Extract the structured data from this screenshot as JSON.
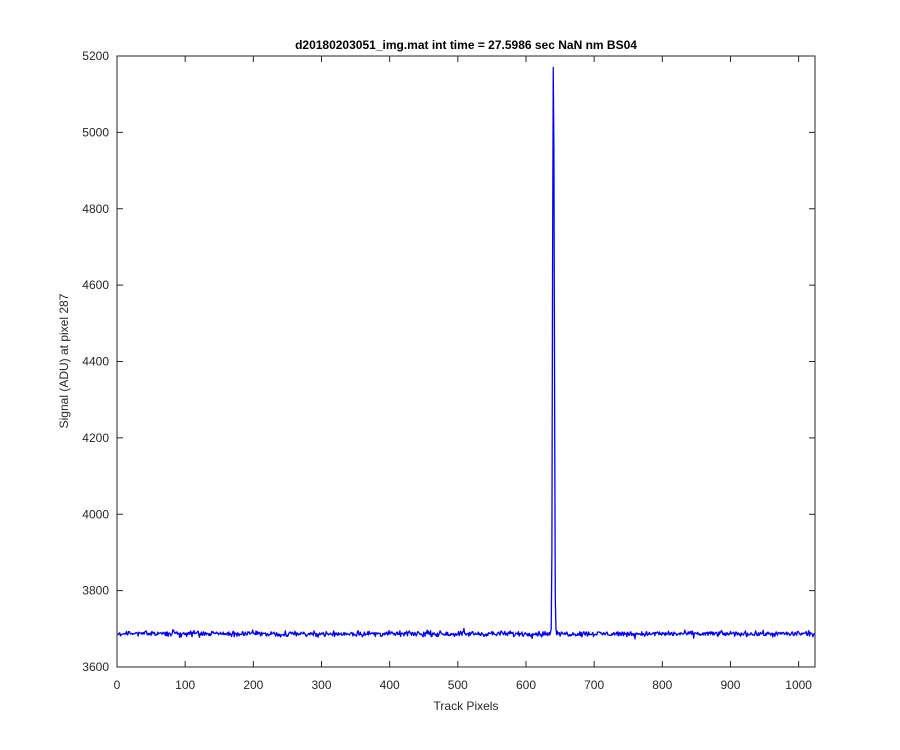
{
  "chart_data": {
    "type": "line",
    "title": "d20180203051_img.mat int time = 27.5986 sec  NaN nm BS04",
    "xlabel": "Track Pixels",
    "ylabel": "Signal (ADU) at pixel 287",
    "xlim": [
      0,
      1024
    ],
    "ylim": [
      3600,
      5200
    ],
    "xticks": [
      "0",
      "100",
      "200",
      "300",
      "400",
      "500",
      "600",
      "700",
      "800",
      "900",
      "1000"
    ],
    "yticks": [
      "3600",
      "3800",
      "4000",
      "4200",
      "4400",
      "4600",
      "4800",
      "5000",
      "5200"
    ],
    "grid": false,
    "line_color": "#0000ff",
    "series": [
      {
        "baseline": 3687,
        "noise_amplitude": 10,
        "x_range": [
          1,
          1024
        ],
        "spike": {
          "x": [
            637,
            638,
            639,
            640,
            641,
            642,
            643,
            644
          ],
          "y": [
            3700,
            3900,
            4650,
            5170,
            4940,
            4300,
            3780,
            3700
          ]
        }
      }
    ]
  }
}
